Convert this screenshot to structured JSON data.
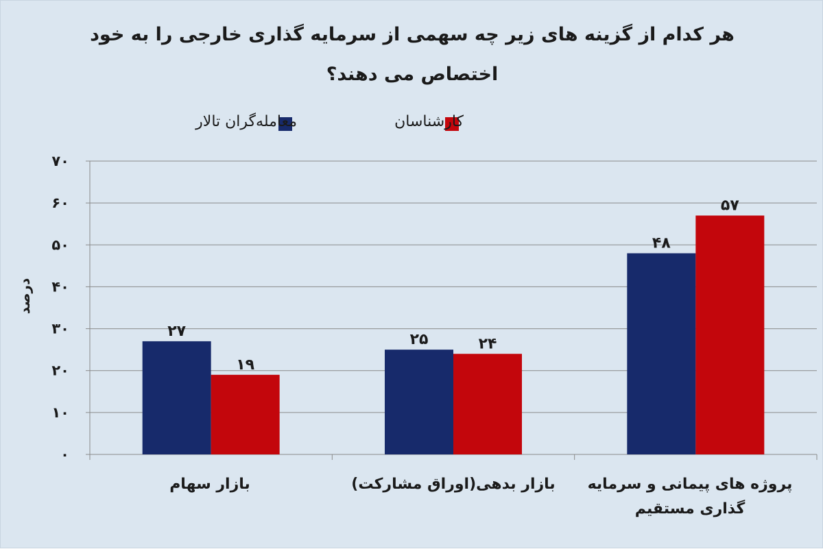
{
  "chart_data": {
    "type": "bar",
    "title": "هر کدام از گزینه های زیر چه سهمی از سرمایه گذاری خارجی را به خود",
    "title_line2": "اختصاص می دهند؟",
    "ylabel": "درصد",
    "ylim": [
      0,
      70
    ],
    "yticks": [
      "۰",
      "۱۰",
      "۲۰",
      "۳۰",
      "۴۰",
      "۵۰",
      "۶۰",
      "۷۰"
    ],
    "ytick_values": [
      0,
      10,
      20,
      30,
      40,
      50,
      60,
      70
    ],
    "grid": true,
    "legend_position": "top",
    "categories": [
      {
        "line1": "بازار سهام",
        "line2": ""
      },
      {
        "line1": "بازار بدهی(اوراق مشارکت)",
        "line2": ""
      },
      {
        "line1": "پروژه های پیمانی و سرمایه",
        "line2": "گذاری مستقیم"
      }
    ],
    "series": [
      {
        "name": "معامله‌گران تالار",
        "color": "#172a6b",
        "values": [
          27,
          25,
          48
        ],
        "labels": [
          "۲۷",
          "۲۵",
          "۴۸"
        ]
      },
      {
        "name": "کارشناسان",
        "color": "#c3060c",
        "values": [
          19,
          24,
          57
        ],
        "labels": [
          "۱۹",
          "۲۴",
          "۵۷"
        ]
      }
    ]
  }
}
